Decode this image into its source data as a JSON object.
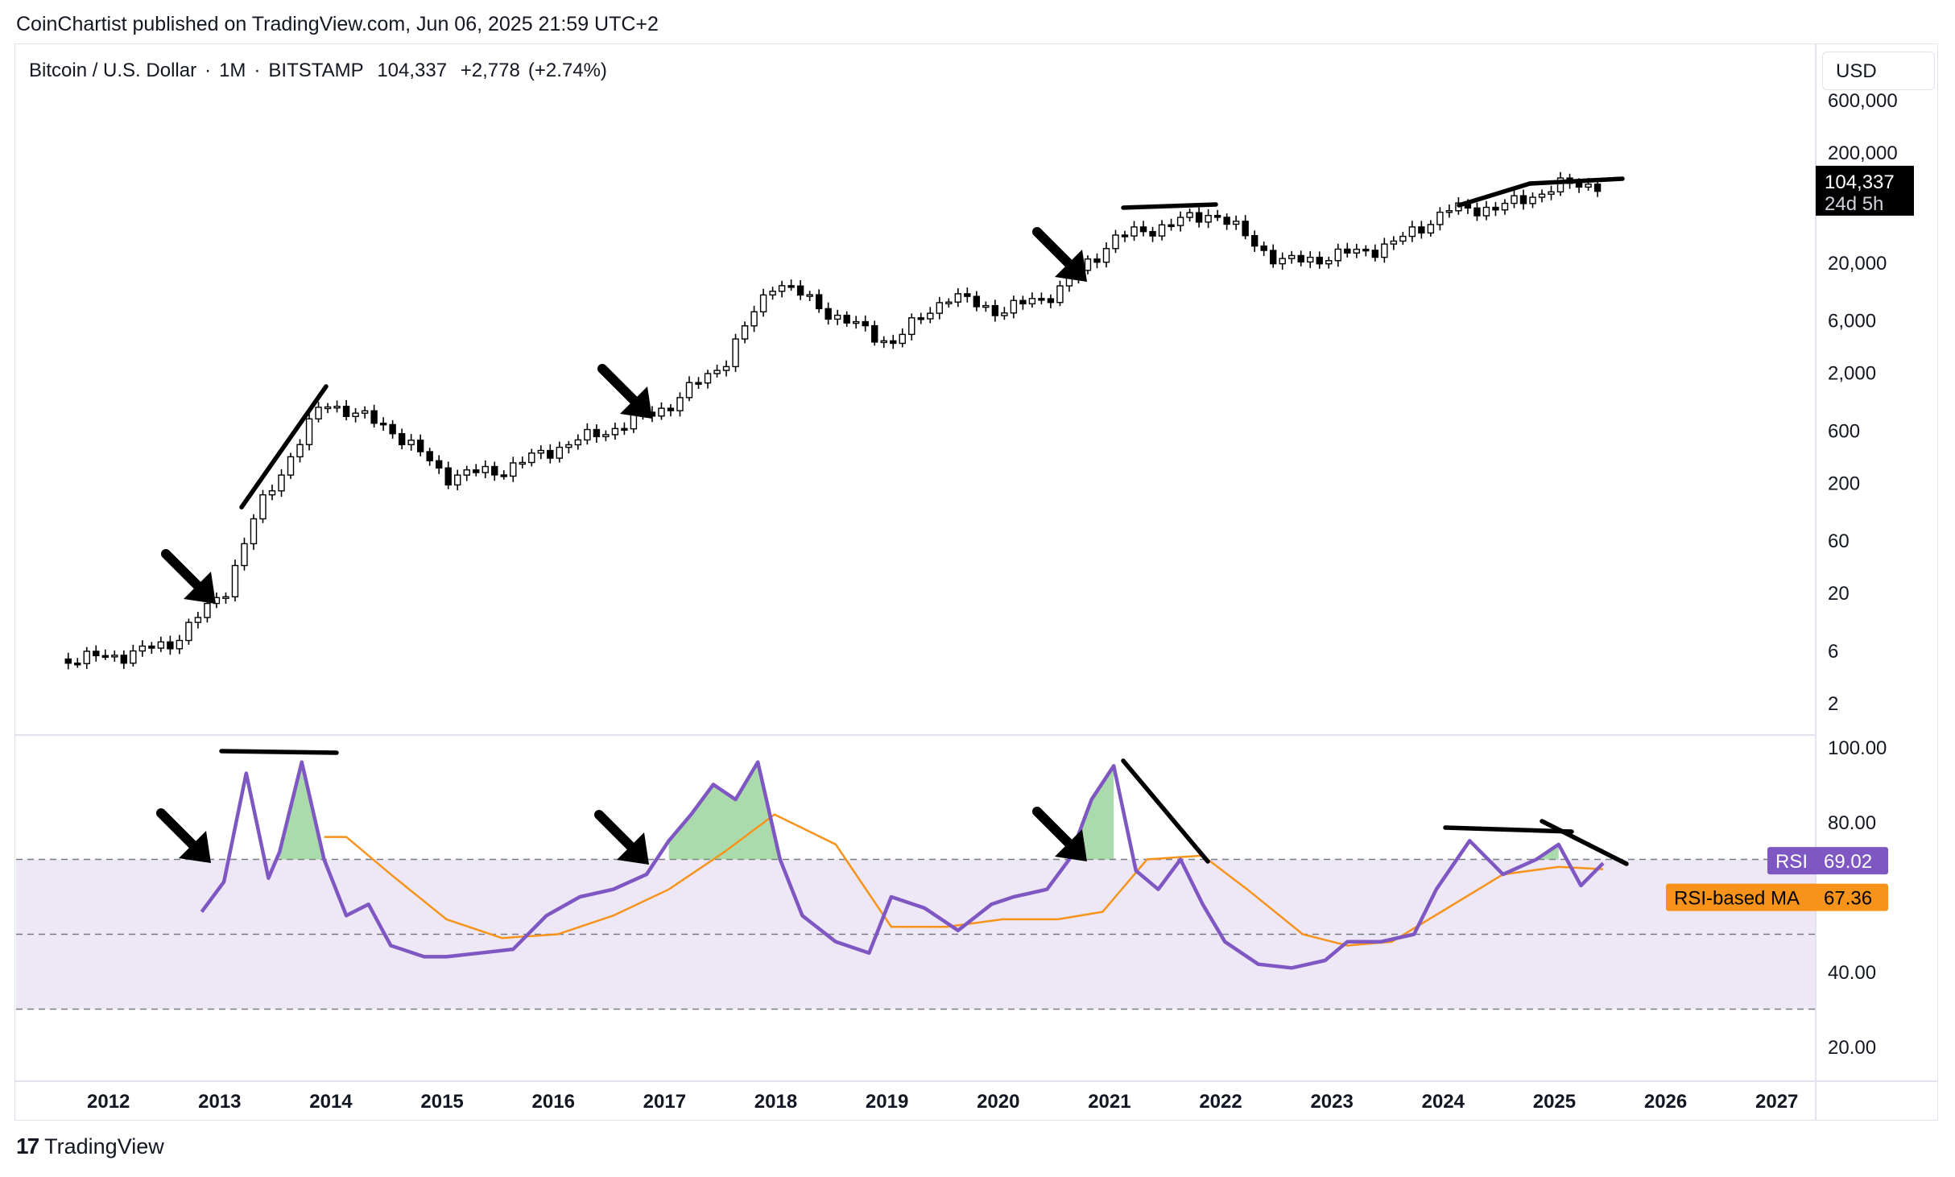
{
  "header": {
    "published_line": "CoinChartist published on TradingView.com, Jun 06, 2025 21:59 UTC+2"
  },
  "symbol": {
    "name": "Bitcoin / U.S. Dollar",
    "interval": "1M",
    "exchange": "BITSTAMP",
    "price": "104,337",
    "change": "+2,778",
    "change_pct": "(+2.74%)",
    "sep": "·"
  },
  "currency": "USD",
  "price_tag": {
    "value": "104,337",
    "countdown": "24d 5h"
  },
  "rsi_tags": {
    "rsi_label": "RSI",
    "rsi_value": "69.02",
    "ma_label": "RSI-based MA",
    "ma_value": "67.36"
  },
  "colors": {
    "rsi_line": "#7e57c2",
    "rsi_ma_line": "#f7931a",
    "rsi_band": "#ede7f6",
    "overbought_fill": "#66bb6a",
    "candle_up": "#ffffff",
    "candle_down": "#000000"
  },
  "footer": {
    "brand": "TradingView",
    "logo_glyph": "17"
  },
  "chart_data": [
    {
      "type": "candlestick",
      "log_scale": true,
      "price_axis_ticks": [
        "600,000",
        "200,000",
        "20,000",
        "6,000",
        "2,000",
        "600",
        "200",
        "60",
        "20",
        "6",
        "2"
      ],
      "price_axis_values": [
        600000,
        200000,
        20000,
        6000,
        2000,
        600,
        200,
        60,
        20,
        6,
        2
      ],
      "x_axis_ticks": [
        "2012",
        "2013",
        "2014",
        "2015",
        "2016",
        "2017",
        "2018",
        "2019",
        "2020",
        "2021",
        "2022",
        "2023",
        "2024",
        "2025",
        "2026",
        "2027"
      ],
      "last_close": 104337,
      "approx_yearly_close": [
        {
          "x": 2011.6,
          "y": 5
        },
        {
          "x": 2012.0,
          "y": 5.3
        },
        {
          "x": 2012.5,
          "y": 6.7
        },
        {
          "x": 2013.0,
          "y": 20
        },
        {
          "x": 2013.3,
          "y": 110
        },
        {
          "x": 2013.9,
          "y": 1100
        },
        {
          "x": 2014.5,
          "y": 620
        },
        {
          "x": 2015.0,
          "y": 230
        },
        {
          "x": 2015.5,
          "y": 260
        },
        {
          "x": 2016.0,
          "y": 420
        },
        {
          "x": 2016.5,
          "y": 620
        },
        {
          "x": 2017.0,
          "y": 1000
        },
        {
          "x": 2017.5,
          "y": 2500
        },
        {
          "x": 2017.95,
          "y": 14000
        },
        {
          "x": 2018.5,
          "y": 6500
        },
        {
          "x": 2019.0,
          "y": 3700
        },
        {
          "x": 2019.5,
          "y": 10000
        },
        {
          "x": 2020.0,
          "y": 7200
        },
        {
          "x": 2020.5,
          "y": 11000
        },
        {
          "x": 2021.0,
          "y": 33000
        },
        {
          "x": 2021.9,
          "y": 57000
        },
        {
          "x": 2022.5,
          "y": 20000
        },
        {
          "x": 2023.0,
          "y": 23000
        },
        {
          "x": 2023.5,
          "y": 29000
        },
        {
          "x": 2024.0,
          "y": 60000
        },
        {
          "x": 2024.5,
          "y": 64000
        },
        {
          "x": 2025.0,
          "y": 100000
        },
        {
          "x": 2025.4,
          "y": 104337
        }
      ]
    },
    {
      "type": "line",
      "name_label": "RSI",
      "rsi_axis_ticks": [
        "100.00",
        "80.00",
        "40.00",
        "20.00"
      ],
      "rsi_axis_values": [
        100,
        80,
        40,
        20
      ],
      "band": [
        30,
        70
      ],
      "midline": 50,
      "series": [
        {
          "name": "RSI",
          "x": [
            2012.8,
            2013.0,
            2013.2,
            2013.4,
            2013.5,
            2013.7,
            2013.9,
            2014.1,
            2014.3,
            2014.5,
            2014.8,
            2015.0,
            2015.3,
            2015.6,
            2015.9,
            2016.2,
            2016.5,
            2016.8,
            2017.0,
            2017.2,
            2017.4,
            2017.6,
            2017.8,
            2018.0,
            2018.2,
            2018.5,
            2018.8,
            2019.0,
            2019.3,
            2019.6,
            2019.9,
            2020.1,
            2020.4,
            2020.6,
            2020.8,
            2021.0,
            2021.2,
            2021.4,
            2021.6,
            2021.8,
            2022.0,
            2022.3,
            2022.6,
            2022.9,
            2023.1,
            2023.4,
            2023.7,
            2023.9,
            2024.2,
            2024.5,
            2024.8,
            2025.0,
            2025.2,
            2025.4
          ],
          "values": [
            56,
            64,
            93,
            65,
            72,
            96,
            70,
            55,
            58,
            47,
            44,
            44,
            45,
            46,
            55,
            60,
            62,
            66,
            75,
            82,
            90,
            86,
            96,
            70,
            55,
            48,
            45,
            60,
            57,
            51,
            58,
            60,
            62,
            70,
            86,
            95,
            67,
            62,
            70,
            58,
            48,
            42,
            41,
            43,
            48,
            48,
            50,
            62,
            75,
            66,
            70,
            74,
            63,
            69
          ]
        },
        {
          "name": "RSI-based MA",
          "x": [
            2013.9,
            2014.1,
            2014.5,
            2015.0,
            2015.5,
            2016.0,
            2016.5,
            2017.0,
            2017.5,
            2017.95,
            2018.5,
            2019.0,
            2019.5,
            2020.0,
            2020.5,
            2020.9,
            2021.3,
            2021.8,
            2022.2,
            2022.7,
            2023.1,
            2023.5,
            2024.0,
            2024.5,
            2025.0,
            2025.4
          ],
          "values": [
            76,
            76,
            66,
            54,
            49,
            50,
            55,
            62,
            72,
            82,
            74,
            52,
            52,
            54,
            54,
            56,
            70,
            71,
            62,
            50,
            47,
            48,
            57,
            66,
            68,
            67.4
          ]
        }
      ]
    }
  ]
}
